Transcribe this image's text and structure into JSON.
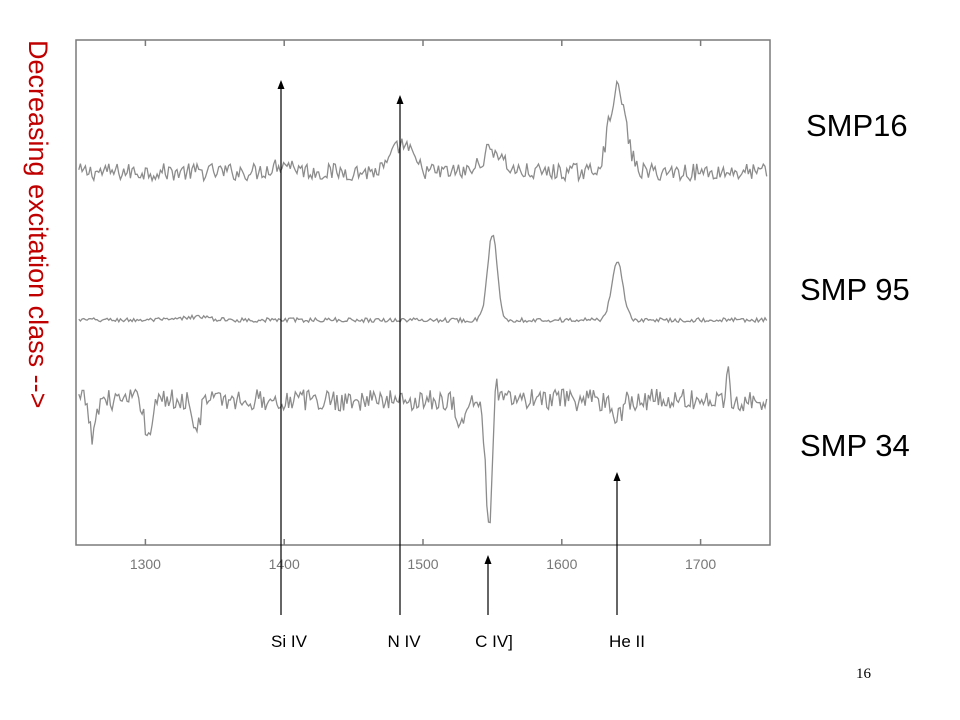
{
  "slide": {
    "side_title": "Decreasing excitation class -->",
    "page_number": "16"
  },
  "colors": {
    "side_title": "#c00000",
    "spectrum": "#8c8c8c",
    "frame": "#7a7a7a",
    "arrow": "#000000"
  },
  "chart_data": {
    "type": "line",
    "title": "",
    "xlabel": "",
    "ylabel": "",
    "xlim": [
      1250,
      1750
    ],
    "x_ticks": [
      1300,
      1400,
      1500,
      1600,
      1700
    ],
    "grid": false,
    "series": [
      {
        "name": "SMP16",
        "baseline": 0.0,
        "noise": 0.35,
        "features": [
          {
            "x": 1400,
            "amp": 0.35,
            "width": 8
          },
          {
            "x": 1485,
            "amp": 1.1,
            "width": 7
          },
          {
            "x": 1550,
            "amp": 0.9,
            "width": 7
          },
          {
            "x": 1640,
            "amp": 3.3,
            "width": 6
          }
        ]
      },
      {
        "name": "SMP 95",
        "baseline": 0.0,
        "noise": 0.1,
        "features": [
          {
            "x": 1337,
            "amp": 0.15,
            "width": 8
          },
          {
            "x": 1550,
            "amp": 3.9,
            "width": 3.5
          },
          {
            "x": 1640,
            "amp": 2.7,
            "width": 4
          }
        ]
      },
      {
        "name": "SMP 34",
        "baseline": 0.0,
        "noise": 0.55,
        "features": [
          {
            "x": 1262,
            "amp": -2.0,
            "width": 2
          },
          {
            "x": 1302,
            "amp": -2.1,
            "width": 2
          },
          {
            "x": 1337,
            "amp": -1.7,
            "width": 2
          },
          {
            "x": 1528,
            "amp": -1.3,
            "width": 3
          },
          {
            "x": 1552,
            "amp": 3.0,
            "width": 1.6
          },
          {
            "x": 1548,
            "amp": -6.0,
            "width": 3
          },
          {
            "x": 1640,
            "amp": -0.9,
            "width": 3
          },
          {
            "x": 1720,
            "amp": 1.2,
            "width": 1.2
          }
        ]
      }
    ],
    "annotations": [
      {
        "label": "Si IV",
        "x": 1397
      },
      {
        "label": "N IV",
        "x": 1486
      },
      {
        "label": "C IV]",
        "x": 1549
      },
      {
        "label": "He II",
        "x": 1640
      }
    ]
  }
}
